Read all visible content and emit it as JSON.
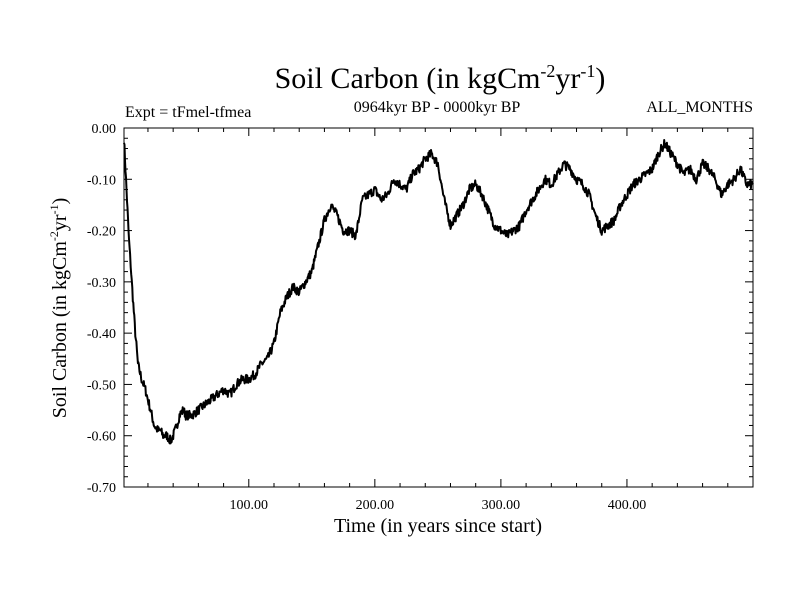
{
  "chart_data": {
    "type": "line",
    "title": {
      "main": "Soil Carbon (in kgCm",
      "sup1": "-2",
      "mid": "yr",
      "sup2": "-1",
      "end": ")"
    },
    "left_label": "Expt = tFmel-tfmea",
    "center_label": "0964kyr BP - 0000kyr BP",
    "right_label": "ALL_MONTHS",
    "xlabel": "Time (in years since start)",
    "ylabel": {
      "main": "Soil Carbon (in kgCm",
      "sup1": "-2",
      "mid": "yr",
      "sup2": "-1",
      "end": ")"
    },
    "xlim": [
      1,
      500
    ],
    "ylim": [
      -0.7,
      0.0
    ],
    "xticks": [
      100,
      200,
      300,
      400
    ],
    "xtick_labels": [
      "100.00",
      "200.00",
      "300.00",
      "400.00"
    ],
    "yticks": [
      0.0,
      -0.1,
      -0.2,
      -0.3,
      -0.4,
      -0.5,
      -0.6,
      -0.7
    ],
    "ytick_labels": [
      "0.00",
      "-0.10",
      "-0.20",
      "-0.30",
      "-0.40",
      "-0.50",
      "-0.60",
      "-0.70"
    ],
    "grid": false,
    "series": [
      {
        "name": "Soil Carbon",
        "color": "#000000",
        "x": [
          1,
          3,
          5,
          8,
          10,
          12,
          15,
          18,
          20,
          22,
          25,
          28,
          30,
          32,
          35,
          38,
          40,
          43,
          45,
          48,
          50,
          55,
          60,
          65,
          70,
          75,
          80,
          85,
          90,
          95,
          100,
          105,
          110,
          115,
          120,
          125,
          130,
          135,
          140,
          145,
          150,
          155,
          160,
          165,
          170,
          175,
          180,
          185,
          190,
          195,
          200,
          205,
          210,
          215,
          220,
          225,
          230,
          235,
          240,
          245,
          250,
          255,
          258,
          260,
          265,
          270,
          275,
          280,
          285,
          290,
          295,
          300,
          305,
          310,
          315,
          320,
          325,
          330,
          335,
          340,
          345,
          350,
          355,
          360,
          365,
          370,
          375,
          380,
          385,
          390,
          395,
          400,
          405,
          410,
          415,
          420,
          425,
          430,
          435,
          440,
          445,
          450,
          455,
          460,
          465,
          470,
          475,
          480,
          485,
          490,
          495,
          500
        ],
        "y": [
          -0.02,
          -0.12,
          -0.22,
          -0.33,
          -0.4,
          -0.46,
          -0.49,
          -0.51,
          -0.53,
          -0.55,
          -0.58,
          -0.59,
          -0.59,
          -0.6,
          -0.6,
          -0.61,
          -0.6,
          -0.58,
          -0.56,
          -0.55,
          -0.56,
          -0.56,
          -0.55,
          -0.54,
          -0.53,
          -0.52,
          -0.51,
          -0.52,
          -0.5,
          -0.49,
          -0.49,
          -0.48,
          -0.46,
          -0.45,
          -0.42,
          -0.36,
          -0.33,
          -0.31,
          -0.32,
          -0.3,
          -0.28,
          -0.23,
          -0.18,
          -0.15,
          -0.17,
          -0.2,
          -0.2,
          -0.21,
          -0.14,
          -0.13,
          -0.12,
          -0.14,
          -0.13,
          -0.1,
          -0.11,
          -0.12,
          -0.09,
          -0.08,
          -0.06,
          -0.05,
          -0.07,
          -0.14,
          -0.17,
          -0.19,
          -0.17,
          -0.15,
          -0.12,
          -0.11,
          -0.13,
          -0.16,
          -0.19,
          -0.2,
          -0.21,
          -0.2,
          -0.19,
          -0.16,
          -0.14,
          -0.12,
          -0.1,
          -0.11,
          -0.09,
          -0.07,
          -0.08,
          -0.1,
          -0.11,
          -0.13,
          -0.17,
          -0.2,
          -0.19,
          -0.18,
          -0.15,
          -0.13,
          -0.11,
          -0.1,
          -0.09,
          -0.08,
          -0.05,
          -0.03,
          -0.05,
          -0.07,
          -0.09,
          -0.08,
          -0.1,
          -0.07,
          -0.08,
          -0.1,
          -0.13,
          -0.11,
          -0.1,
          -0.08,
          -0.11,
          -0.11
        ]
      }
    ]
  }
}
